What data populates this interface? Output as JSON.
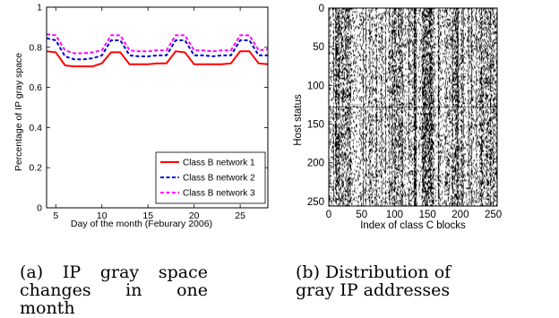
{
  "chart_data": [
    {
      "type": "line",
      "ylabel": "Percentage of IP gray space",
      "xlabel": "Day of the month (Feburary 2006)",
      "xlim": [
        4,
        28
      ],
      "ylim": [
        0,
        1
      ],
      "xticks": [
        5,
        10,
        15,
        20,
        25
      ],
      "yticks": [
        0,
        0.2,
        0.4,
        0.6,
        0.8,
        1
      ],
      "ytick_labels": [
        "0",
        "0.2",
        "0.4",
        "0.6",
        "0.8",
        "1"
      ],
      "legend_position": "bottom-right",
      "x": [
        4,
        5,
        6,
        7,
        8,
        9,
        10,
        11,
        12,
        13,
        14,
        15,
        16,
        17,
        18,
        19,
        20,
        21,
        22,
        23,
        24,
        25,
        26,
        27,
        28
      ],
      "series": [
        {
          "name": "Class B network 1",
          "color": "#ff0000",
          "dash": "solid",
          "values": [
            0.78,
            0.775,
            0.71,
            0.705,
            0.705,
            0.705,
            0.72,
            0.775,
            0.775,
            0.715,
            0.715,
            0.715,
            0.72,
            0.72,
            0.78,
            0.775,
            0.715,
            0.715,
            0.715,
            0.715,
            0.72,
            0.78,
            0.78,
            0.72,
            0.715
          ]
        },
        {
          "name": "Class B network 2",
          "color": "#0000cc",
          "dash": "dashed",
          "values": [
            0.845,
            0.835,
            0.755,
            0.74,
            0.74,
            0.745,
            0.76,
            0.835,
            0.835,
            0.76,
            0.755,
            0.755,
            0.76,
            0.76,
            0.835,
            0.835,
            0.76,
            0.76,
            0.755,
            0.76,
            0.76,
            0.835,
            0.835,
            0.76,
            0.76
          ]
        },
        {
          "name": "Class B network 3",
          "color": "#ff00ff",
          "dash": "dashed",
          "values": [
            0.865,
            0.86,
            0.785,
            0.77,
            0.77,
            0.775,
            0.785,
            0.86,
            0.86,
            0.785,
            0.78,
            0.78,
            0.785,
            0.785,
            0.86,
            0.86,
            0.785,
            0.785,
            0.78,
            0.785,
            0.785,
            0.86,
            0.86,
            0.785,
            0.79
          ]
        }
      ]
    },
    {
      "type": "heatmap",
      "ylabel": "Host status",
      "xlabel": "Index of class C blocks",
      "xlim": [
        0,
        256
      ],
      "ylim": [
        0,
        256
      ],
      "y_reversed": true,
      "xticks": [
        0,
        50,
        100,
        150,
        200,
        250
      ],
      "yticks": [
        0,
        50,
        100,
        150,
        200,
        250
      ],
      "colors": {
        "on": "#000000",
        "off": "#ffffff"
      },
      "horizontal_band_row": 128
    }
  ],
  "captions": {
    "a": "(a)   IP   gray   space changes in one month",
    "b": "(b) Distribution of gray IP addresses"
  }
}
